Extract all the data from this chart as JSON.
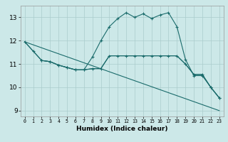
{
  "title": "",
  "xlabel": "Humidex (Indice chaleur)",
  "bg_color": "#cce8e8",
  "grid_color": "#aacccc",
  "line_color": "#1a6b6b",
  "xlim": [
    -0.5,
    23.5
  ],
  "ylim": [
    8.75,
    13.5
  ],
  "xticks": [
    0,
    1,
    2,
    3,
    4,
    5,
    6,
    7,
    8,
    9,
    10,
    11,
    12,
    13,
    14,
    15,
    16,
    17,
    18,
    19,
    20,
    21,
    22,
    23
  ],
  "yticks": [
    9,
    10,
    11,
    12,
    13
  ],
  "series1_x": [
    0,
    1,
    2,
    3,
    4,
    5,
    6,
    7,
    8,
    9,
    10,
    11,
    12,
    13,
    14,
    15,
    16,
    17,
    18,
    19,
    20,
    21,
    22,
    23
  ],
  "series1_y": [
    11.95,
    11.55,
    11.15,
    11.1,
    10.95,
    10.85,
    10.75,
    10.75,
    11.3,
    12.0,
    12.6,
    12.95,
    13.2,
    13.0,
    13.15,
    12.95,
    13.1,
    13.2,
    12.6,
    11.2,
    10.5,
    10.5,
    10.0,
    9.55
  ],
  "series2_x": [
    0,
    1,
    2,
    3,
    4,
    5,
    6,
    7,
    8,
    9,
    10,
    11,
    12,
    13,
    14,
    15,
    16,
    17,
    18,
    19,
    20,
    21,
    22,
    23
  ],
  "series2_y": [
    11.95,
    11.55,
    11.15,
    11.1,
    10.95,
    10.85,
    10.75,
    10.75,
    10.8,
    10.8,
    11.35,
    11.35,
    11.35,
    11.35,
    11.35,
    11.35,
    11.35,
    11.35,
    11.35,
    11.0,
    10.55,
    10.55,
    10.0,
    9.55
  ],
  "series3_x": [
    2,
    3,
    4,
    5,
    6,
    7,
    8,
    9,
    10,
    11,
    12,
    13,
    14,
    15,
    16,
    17,
    18,
    19,
    20,
    21,
    22,
    23
  ],
  "series3_y": [
    11.15,
    11.1,
    10.95,
    10.85,
    10.75,
    10.75,
    10.8,
    10.8,
    11.35,
    11.35,
    11.35,
    11.35,
    11.35,
    11.35,
    11.35,
    11.35,
    11.35,
    11.0,
    10.55,
    10.55,
    10.0,
    9.55
  ],
  "series4_x": [
    0,
    23
  ],
  "series4_y": [
    11.95,
    9.0
  ]
}
